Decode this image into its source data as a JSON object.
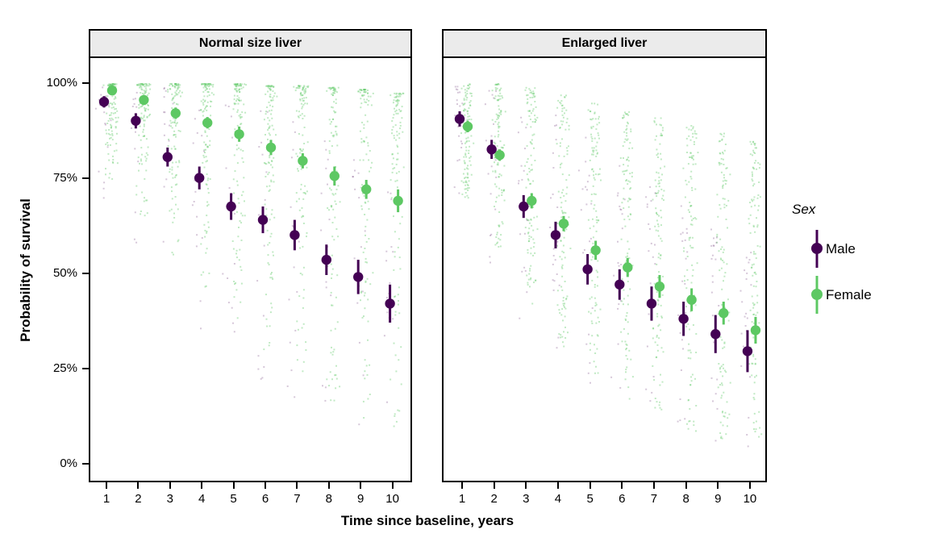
{
  "chart_data": {
    "type": "scatter",
    "subtype": "pointrange-with-jittered-draws",
    "title": "",
    "xlabel": "Time since baseline, years",
    "ylabel": "Probability of survival",
    "x": [
      1,
      2,
      3,
      4,
      5,
      6,
      7,
      8,
      9,
      10
    ],
    "x_tick_labels": [
      "1",
      "2",
      "3",
      "4",
      "5",
      "6",
      "7",
      "8",
      "9",
      "10"
    ],
    "y_ticks": [
      {
        "value": 0,
        "label": "0%"
      },
      {
        "value": 25,
        "label": "25%"
      },
      {
        "value": 50,
        "label": "50%"
      },
      {
        "value": 75,
        "label": "75%"
      },
      {
        "value": 100,
        "label": "100%"
      }
    ],
    "ylim": [
      0,
      100
    ],
    "grid": false,
    "legend": {
      "title": "Sex",
      "position": "right",
      "items": [
        {
          "label": "Male",
          "color": "#440154"
        },
        {
          "label": "Female",
          "color": "#5DC863"
        }
      ]
    },
    "facets": [
      {
        "label": "Normal size liver",
        "series": [
          {
            "name": "Male",
            "color": "#440154",
            "values": [
              95.5,
              90.5,
              81,
              75.5,
              68,
              64.5,
              60.5,
              54,
              49.5,
              42.5
            ],
            "ci_half": [
              1.5,
              2,
              2.5,
              3,
              3.5,
              3.5,
              4,
              4,
              4.5,
              5
            ]
          },
          {
            "name": "Female",
            "color": "#5DC863",
            "values": [
              98.5,
              96,
              92.5,
              90,
              87,
              83.5,
              80,
              76,
              72.5,
              69.5
            ],
            "ci_half": [
              1,
              1,
              1.5,
              1.5,
              2,
              2,
              2,
              2.5,
              2.5,
              3
            ]
          }
        ]
      },
      {
        "label": "Enlarged liver",
        "series": [
          {
            "name": "Male",
            "color": "#440154",
            "values": [
              91,
              83,
              68,
              60.5,
              51.5,
              47.5,
              42.5,
              38.5,
              34.5,
              30
            ],
            "ci_half": [
              2,
              2.5,
              3,
              3.5,
              4,
              4,
              4.5,
              4.5,
              5,
              5.5
            ]
          },
          {
            "name": "Female",
            "color": "#5DC863",
            "values": [
              89,
              81.5,
              69.5,
              63.5,
              56.5,
              52,
              47,
              43.5,
              40,
              35.5
            ],
            "ci_half": [
              1.5,
              1.5,
              2,
              2,
              2.5,
              2.5,
              3,
              3,
              3,
              3.5
            ]
          }
        ]
      }
    ],
    "jitter_clouds": {
      "note": "background cloud of individual predicted probabilities per year, jittered",
      "seed": 7,
      "dot_size_px": 2,
      "female_rgba": "rgba(93,200,99,0.38)",
      "male_rgba": "rgba(68,1,84,0.22)",
      "facet0_female": {
        "count": 115,
        "skew": 2.4,
        "lo": [
          75,
          65,
          55,
          45,
          36,
          28,
          22,
          16,
          12,
          8
        ],
        "hi": [
          100,
          100,
          100,
          100,
          100,
          99.5,
          99.5,
          99,
          98.5,
          97.5
        ]
      },
      "facet0_male": {
        "count": 16,
        "skew": 1.6,
        "lo": [
          70,
          55,
          42,
          33,
          26,
          20,
          16,
          12,
          9,
          7
        ],
        "hi": [
          100,
          100,
          99,
          98,
          96,
          93,
          90,
          85,
          80,
          74
        ]
      },
      "facet1_female": {
        "count": 115,
        "skew": 1.4,
        "lo": [
          70,
          56,
          42,
          31,
          22,
          16,
          11,
          8,
          6,
          5
        ],
        "hi": [
          100,
          100,
          99,
          97,
          95,
          93,
          91,
          89,
          87,
          85
        ]
      },
      "facet1_male": {
        "count": 22,
        "skew": 1.5,
        "lo": [
          68,
          52,
          38,
          28,
          20,
          14,
          10,
          7,
          5,
          4
        ],
        "hi": [
          100,
          99,
          96,
          92,
          86,
          80,
          74,
          68,
          62,
          56
        ]
      }
    }
  }
}
